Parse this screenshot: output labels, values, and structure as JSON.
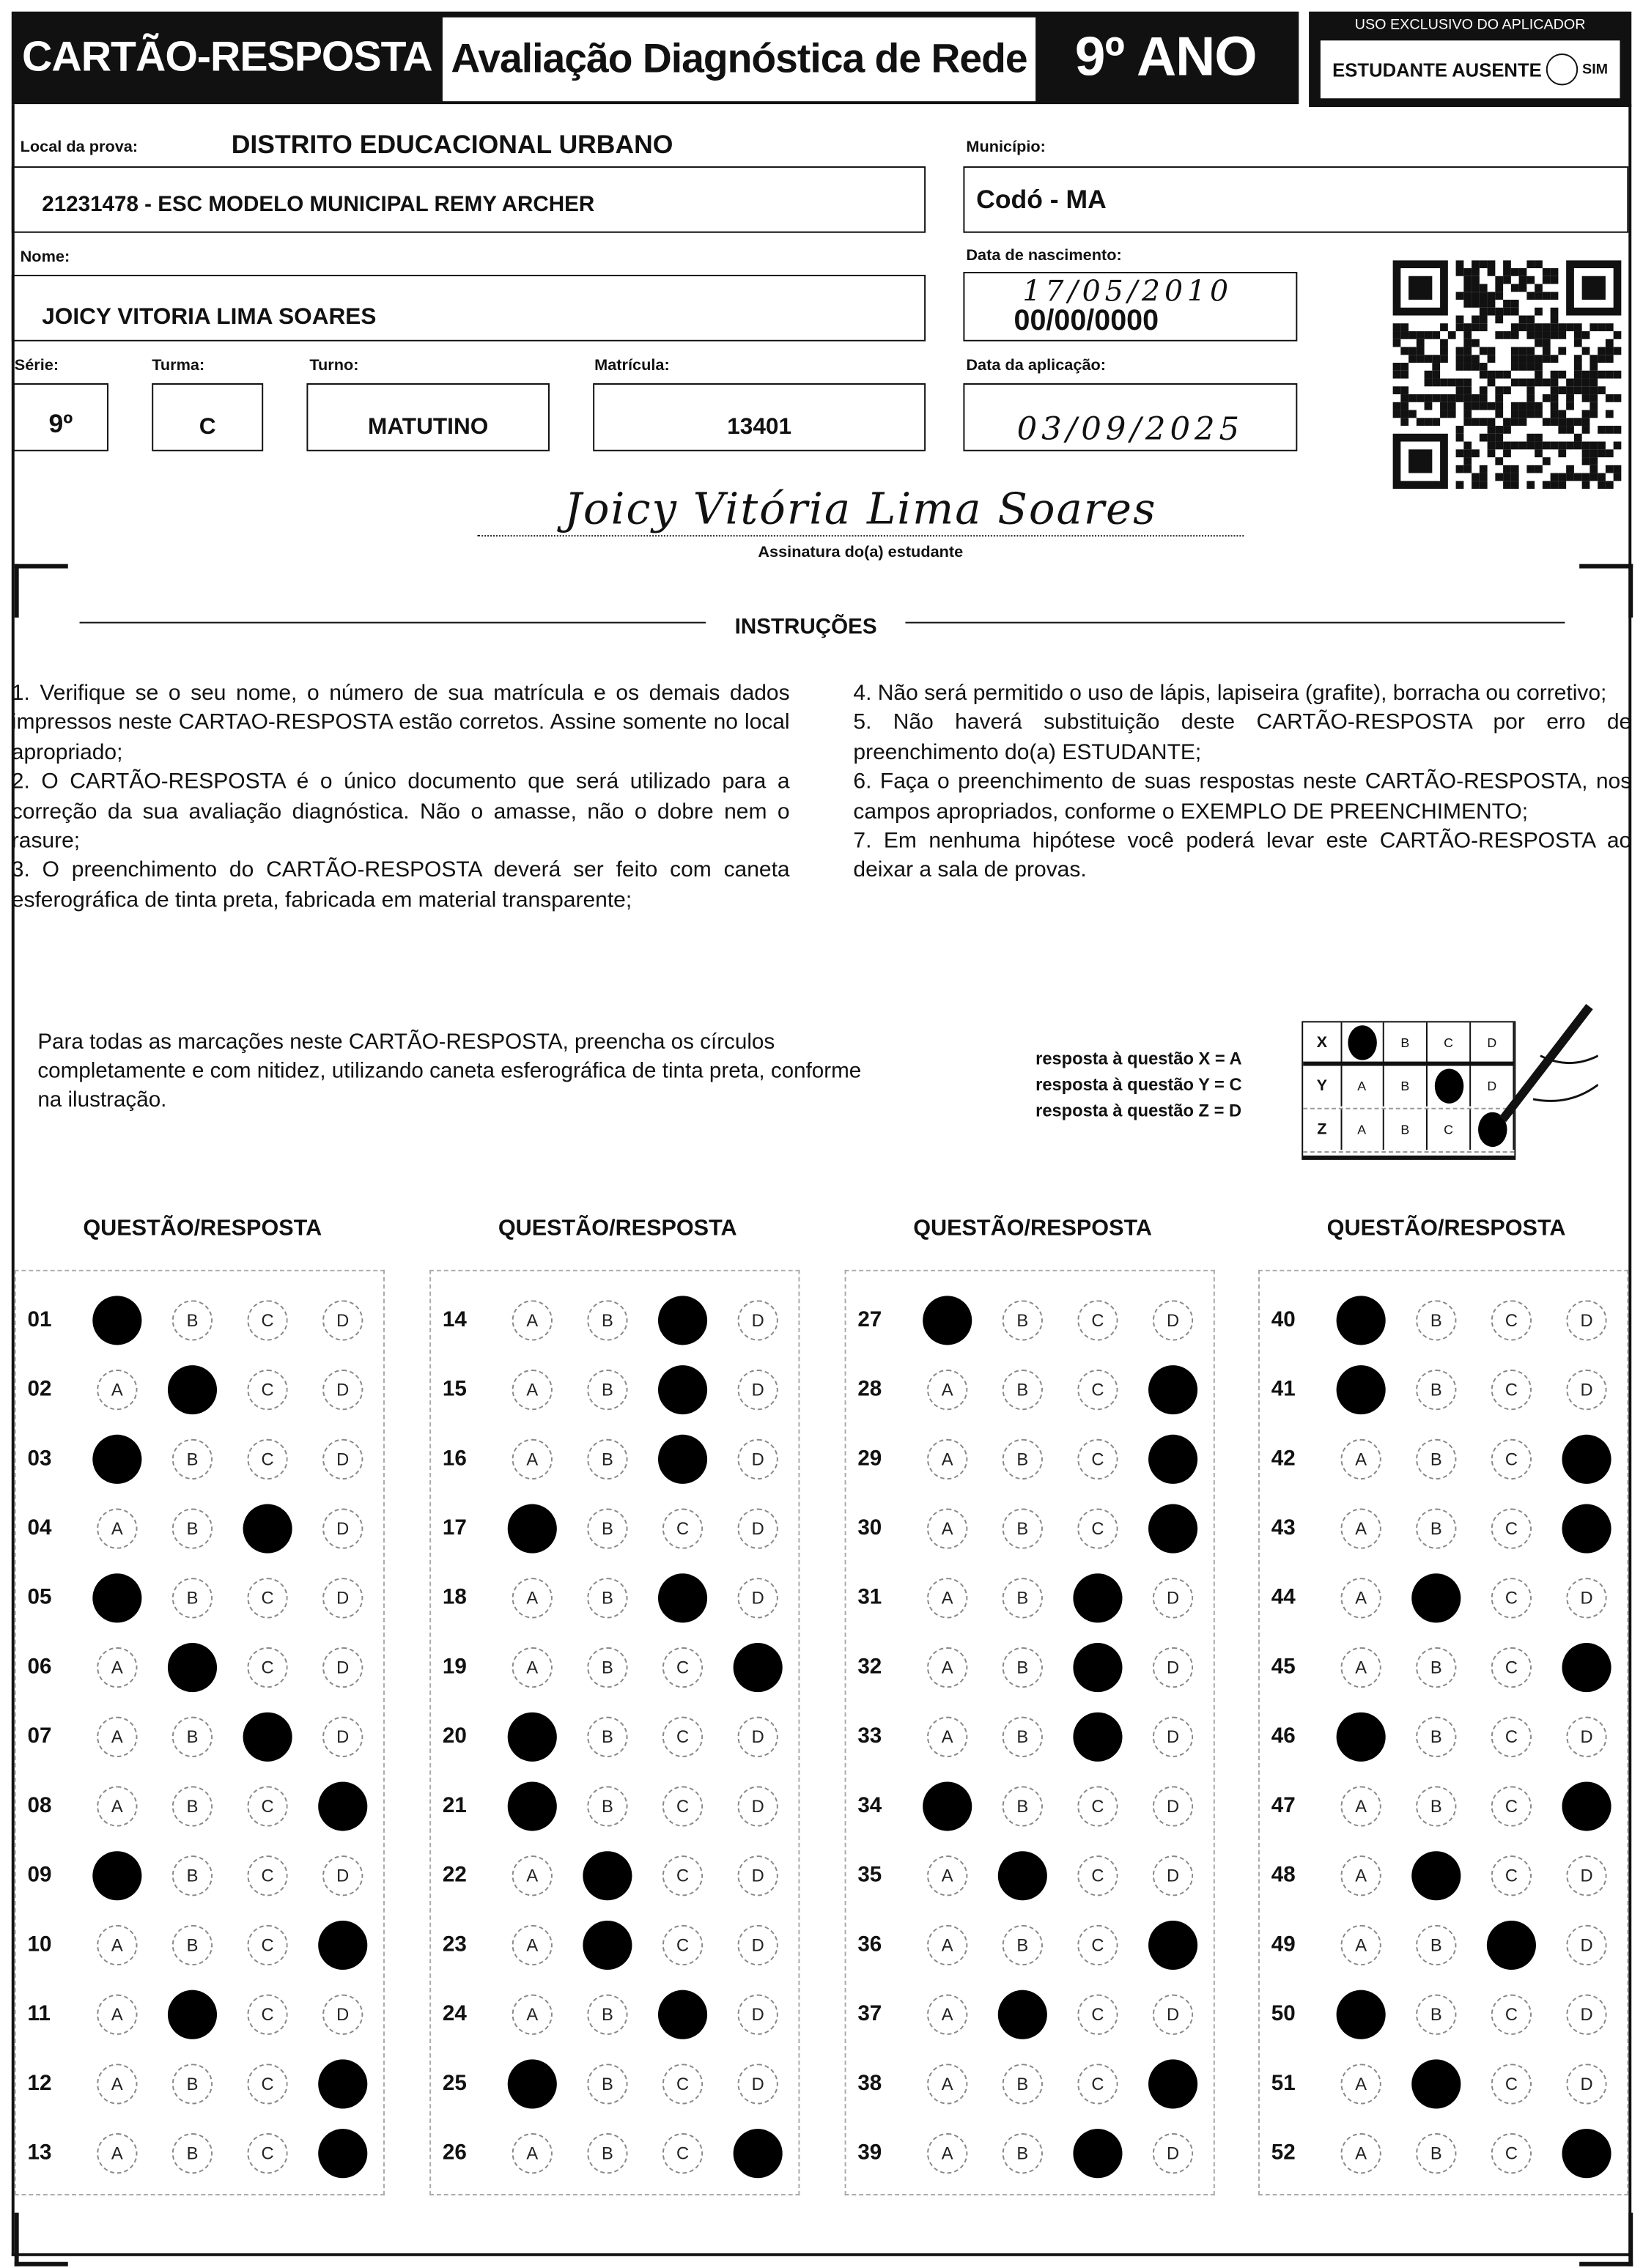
{
  "header": {
    "title": "CARTÃO-RESPOSTA",
    "exam": "Avaliação Diagnóstica de Rede",
    "grade": "9º ANO",
    "applicator_label": "USO EXCLUSIVO DO APLICADOR",
    "absent_label": "ESTUDANTE AUSENTE",
    "absent_option": "SIM",
    "absent_checked": false
  },
  "fields": {
    "local_label": "Local da prova:",
    "district": "DISTRITO EDUCACIONAL URBANO",
    "school": "21231478 - ESC MODELO MUNICIPAL REMY ARCHER",
    "municipio_label": "Município:",
    "municipio": "Codó - MA",
    "nome_label": "Nome:",
    "nome": "JOICY VITORIA LIMA SOARES",
    "nascimento_label": "Data de nascimento:",
    "nascimento_hand": "17/05/2010",
    "nascimento_printed": "00/00/0000",
    "serie_label": "Série:",
    "serie": "9º",
    "turma_label": "Turma:",
    "turma": "C",
    "turno_label": "Turno:",
    "turno": "MATUTINO",
    "matricula_label": "Matrícula:",
    "matricula": "13401",
    "aplicacao_label": "Data da aplicação:",
    "aplicacao": "03/09/2025"
  },
  "signature": {
    "text": "Joicy Vitória Lima Soares",
    "label": "Assinatura do(a) estudante"
  },
  "instructions": {
    "title": "INSTRUÇÕES",
    "left": [
      "1. Verifique se o seu nome, o número de sua matrícula e os demais dados impressos neste CARTAO-RESPOSTA estão corretos. Assine somente no local apropriado;",
      "2. O CARTÃO-RESPOSTA é o único documento que será utilizado para a correção da sua avaliação diagnóstica. Não o amasse, não o dobre nem o rasure;",
      "3. O preenchimento do CARTÃO-RESPOSTA deverá ser feito com caneta esferográfica de tinta preta, fabricada em material transparente;"
    ],
    "right": [
      "4. Não será permitido o uso de lápis, lapiseira (grafite), borracha ou corretivo;",
      "5. Não haverá substituição deste CARTÃO-RESPOSTA por erro de preenchimento do(a) ESTUDANTE;",
      "6. Faça o preenchimento de suas respostas neste CARTÃO-RESPOSTA, nos campos apropriados, conforme o EXEMPLO DE PREENCHIMENTO;",
      "7. Em nenhuma hipótese você poderá levar este CARTÃO-RESPOSTA ao deixar a sala de provas."
    ]
  },
  "example": {
    "text": "Para todas as marcações neste CARTÃO-RESPOSTA, preencha os círculos completamente e com nitidez, utilizando caneta esferográfica de tinta preta, conforme na ilustração.",
    "legend": [
      "resposta à questão X = A",
      "resposta à questão Y = C",
      "resposta à questão Z = D"
    ],
    "rows": [
      {
        "q": "X",
        "answer": "A"
      },
      {
        "q": "Y",
        "answer": "C"
      },
      {
        "q": "Z",
        "answer": "D"
      }
    ]
  },
  "options": [
    "A",
    "B",
    "C",
    "D"
  ],
  "column_header": "QUESTÃO/RESPOSTA",
  "columns": [
    [
      {
        "n": "01",
        "a": "A"
      },
      {
        "n": "02",
        "a": "B"
      },
      {
        "n": "03",
        "a": "A"
      },
      {
        "n": "04",
        "a": "C"
      },
      {
        "n": "05",
        "a": "A"
      },
      {
        "n": "06",
        "a": "B"
      },
      {
        "n": "07",
        "a": "C"
      },
      {
        "n": "08",
        "a": "D"
      },
      {
        "n": "09",
        "a": "A"
      },
      {
        "n": "10",
        "a": "D"
      },
      {
        "n": "11",
        "a": "B"
      },
      {
        "n": "12",
        "a": "D"
      },
      {
        "n": "13",
        "a": "D"
      }
    ],
    [
      {
        "n": "14",
        "a": "C"
      },
      {
        "n": "15",
        "a": "C"
      },
      {
        "n": "16",
        "a": "C"
      },
      {
        "n": "17",
        "a": "A"
      },
      {
        "n": "18",
        "a": "C"
      },
      {
        "n": "19",
        "a": "D"
      },
      {
        "n": "20",
        "a": "A"
      },
      {
        "n": "21",
        "a": "A"
      },
      {
        "n": "22",
        "a": "B"
      },
      {
        "n": "23",
        "a": "B"
      },
      {
        "n": "24",
        "a": "C"
      },
      {
        "n": "25",
        "a": "A"
      },
      {
        "n": "26",
        "a": "D"
      }
    ],
    [
      {
        "n": "27",
        "a": "A"
      },
      {
        "n": "28",
        "a": "D"
      },
      {
        "n": "29",
        "a": "D"
      },
      {
        "n": "30",
        "a": "D"
      },
      {
        "n": "31",
        "a": "C"
      },
      {
        "n": "32",
        "a": "C"
      },
      {
        "n": "33",
        "a": "C"
      },
      {
        "n": "34",
        "a": "A"
      },
      {
        "n": "35",
        "a": "B"
      },
      {
        "n": "36",
        "a": "D"
      },
      {
        "n": "37",
        "a": "B"
      },
      {
        "n": "38",
        "a": "D"
      },
      {
        "n": "39",
        "a": "C"
      }
    ],
    [
      {
        "n": "40",
        "a": "A"
      },
      {
        "n": "41",
        "a": "A"
      },
      {
        "n": "42",
        "a": "D"
      },
      {
        "n": "43",
        "a": "D"
      },
      {
        "n": "44",
        "a": "B"
      },
      {
        "n": "45",
        "a": "D"
      },
      {
        "n": "46",
        "a": "A"
      },
      {
        "n": "47",
        "a": "D"
      },
      {
        "n": "48",
        "a": "B"
      },
      {
        "n": "49",
        "a": "C"
      },
      {
        "n": "50",
        "a": "A"
      },
      {
        "n": "51",
        "a": "B"
      },
      {
        "n": "52",
        "a": "D"
      }
    ]
  ]
}
